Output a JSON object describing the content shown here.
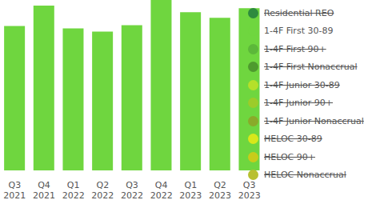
{
  "chart_data": {
    "type": "bar",
    "categories": [
      "Q3 2021",
      "Q4 2021",
      "Q1 2022",
      "Q2 2022",
      "Q3 2022",
      "Q4 2022",
      "Q1 2023",
      "Q2 2023",
      "Q3 2023"
    ],
    "series": [
      {
        "name": "Residential REO",
        "color": "#2e8b3e",
        "values": [
          null,
          null,
          null,
          null,
          null,
          null,
          null,
          null,
          null
        ]
      },
      {
        "name": "1-4F First 30-89",
        "color": "#6fd63f",
        "values": [
          178,
          203,
          175,
          171,
          179,
          210,
          195,
          188,
          200
        ]
      },
      {
        "name": "1-4F First 90+",
        "color": "#5cb83a",
        "values": [
          null,
          null,
          null,
          null,
          null,
          null,
          null,
          null,
          null
        ]
      },
      {
        "name": "1-4F First Nonaccrual",
        "color": "#4e9a2e",
        "values": [
          null,
          null,
          null,
          null,
          null,
          null,
          null,
          null,
          null
        ]
      },
      {
        "name": "1-4F Junior 30-89",
        "color": "#b5e02a",
        "values": [
          null,
          null,
          null,
          null,
          null,
          null,
          null,
          null,
          null
        ]
      },
      {
        "name": "1-4F Junior 90+",
        "color": "#9ccc2a",
        "values": [
          null,
          null,
          null,
          null,
          null,
          null,
          null,
          null,
          null
        ]
      },
      {
        "name": "1-4F Junior Nonaccrual",
        "color": "#8aaa2a",
        "values": [
          null,
          null,
          null,
          null,
          null,
          null,
          null,
          null,
          null
        ]
      },
      {
        "name": "HELOC 30-89",
        "color": "#d8e81a",
        "values": [
          null,
          null,
          null,
          null,
          null,
          null,
          null,
          null,
          null
        ]
      },
      {
        "name": "HELOC 90+",
        "color": "#c8cc1a",
        "values": [
          null,
          null,
          null,
          null,
          null,
          null,
          null,
          null,
          null
        ]
      },
      {
        "name": "HELOC Nonaccrual",
        "color": "#b8c030",
        "values": [
          null,
          null,
          null,
          null,
          null,
          null,
          null,
          null,
          null
        ]
      }
    ],
    "ylim": [
      0,
      210
    ],
    "grid": false,
    "legend": "right",
    "tick_labels": "x"
  }
}
